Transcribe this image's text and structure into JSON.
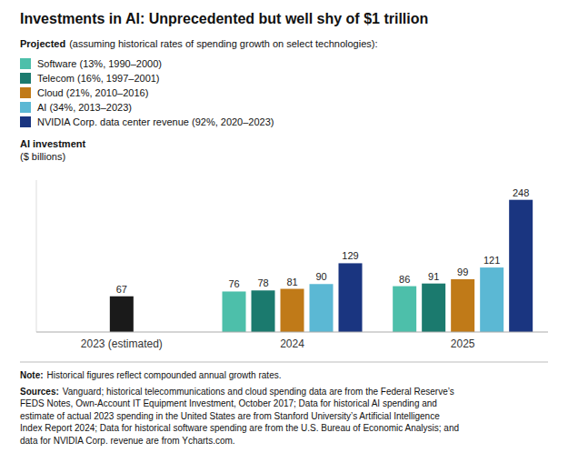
{
  "chart_data": {
    "type": "bar",
    "title": "Investments in AI: Unprecedented but well shy of $1 trillion",
    "ylabel": [
      "AI investment",
      "($ billions)"
    ],
    "categories": [
      "2023 (estimated)",
      "2024",
      "2025"
    ],
    "series": [
      {
        "color": "#1a1a1a",
        "values": [
          67,
          null,
          null
        ]
      },
      {
        "name": "Software (13%, 1990–2000)",
        "color": "#4DBFAA",
        "values": [
          null,
          76,
          86
        ]
      },
      {
        "name": "Telecom (16%, 1997–2001)",
        "color": "#1B7A6E",
        "values": [
          null,
          78,
          91
        ]
      },
      {
        "name": "Cloud (21%, 2010–2016)",
        "color": "#C07A18",
        "values": [
          null,
          81,
          99
        ]
      },
      {
        "name": "AI (34%, 2013–2023)",
        "color": "#5BB8D4",
        "values": [
          null,
          90,
          121
        ]
      },
      {
        "name": "NVIDIA Corp. data center revenue (92%, 2020–2023)",
        "color": "#1A3580",
        "values": [
          null,
          129,
          248
        ]
      }
    ],
    "legend_title": {
      "bold": "Projected",
      "text": "(assuming historical rates of spending growth on select technologies):"
    },
    "notes": [
      {
        "bold": "Note:",
        "lines": [
          "Historical figures reflect compounded annual growth rates."
        ]
      },
      {
        "bold": "Sources:",
        "lines": [
          "Vanguard; historical telecommunications and cloud spending data are from the Federal Reserve’s",
          "FEDS Notes, Own-Account IT Equipment Investment, October 2017; Data for historical AI spending and",
          "estimate of actual 2023 spending in the United States are from Stanford University’s Artificial Intelligence",
          "Index Report 2024; Data for historical software spending are from the U.S. Bureau of Economic Analysis; and",
          "data for NVIDIA Corp. revenue are from Ycharts.com."
        ]
      }
    ],
    "ylim": [
      0,
      285
    ],
    "yticks": [],
    "tick_labels": "x",
    "data_labels": true,
    "grid": false,
    "legend": "top"
  }
}
